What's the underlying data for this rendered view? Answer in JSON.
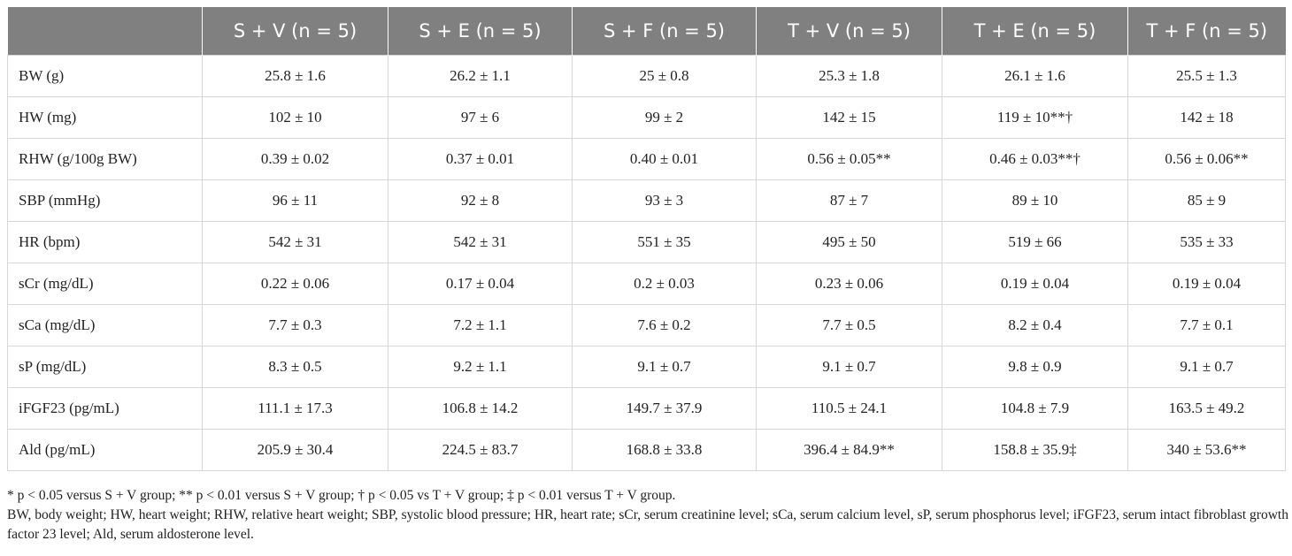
{
  "table": {
    "header": [
      "S + V (n = 5)",
      "S + E (n = 5)",
      "S + F (n = 5)",
      "T + V (n = 5)",
      "T + E (n = 5)",
      "T + F (n = 5)"
    ],
    "rows": [
      [
        "BW (g)",
        "25.8 ± 1.6",
        "26.2 ± 1.1",
        "25 ± 0.8",
        "25.3 ± 1.8",
        "26.1 ± 1.6",
        "25.5 ± 1.3"
      ],
      [
        "HW (mg)",
        "102 ± 10",
        "97 ± 6",
        "99 ± 2",
        "142 ± 15",
        "119 ± 10**†",
        "142 ± 18"
      ],
      [
        "RHW (g/100g BW)",
        "0.39 ± 0.02",
        "0.37 ± 0.01",
        "0.40 ± 0.01",
        "0.56 ± 0.05**",
        "0.46 ± 0.03**†",
        "0.56 ± 0.06**"
      ],
      [
        "SBP (mmHg)",
        "96 ± 11",
        "92 ± 8",
        "93 ± 3",
        "87 ± 7",
        "89 ± 10",
        "85 ± 9"
      ],
      [
        "HR (bpm)",
        "542 ± 31",
        "542 ± 31",
        "551 ± 35",
        "495 ± 50",
        "519 ± 66",
        "535 ± 33"
      ],
      [
        "sCr (mg/dL)",
        "0.22 ± 0.06",
        "0.17 ± 0.04",
        "0.2 ± 0.03",
        "0.23 ± 0.06",
        "0.19 ± 0.04",
        "0.19 ± 0.04"
      ],
      [
        "sCa (mg/dL)",
        "7.7 ± 0.3",
        "7.2 ± 1.1",
        "7.6 ± 0.2",
        "7.7 ± 0.5",
        "8.2 ± 0.4",
        "7.7 ± 0.1"
      ],
      [
        "sP (mg/dL)",
        "8.3 ± 0.5",
        "9.2 ± 1.1",
        "9.1 ± 0.7",
        "9.1 ± 0.7",
        "9.8 ± 0.9",
        "9.1 ± 0.7"
      ],
      [
        "iFGF23 (pg/mL)",
        "111.1 ± 17.3",
        "106.8 ± 14.2",
        "149.7 ± 37.9",
        "110.5 ± 24.1",
        "104.8 ± 7.9",
        "163.5 ± 49.2"
      ],
      [
        "Ald (pg/mL)",
        "205.9 ± 30.4",
        "224.5 ± 83.7",
        "168.8 ± 33.8",
        "396.4 ± 84.9**",
        "158.8 ± 35.9‡",
        "340 ± 53.6**"
      ]
    ]
  },
  "footnotes": [
    "* p < 0.05 versus S + V group; ** p < 0.01 versus S + V group; † p < 0.05 vs T + V group; ‡ p < 0.01 versus T + V group.",
    "BW, body weight; HW, heart weight; RHW, relative heart weight; SBP, systolic blood pressure; HR, heart rate; sCr, serum creatinine level; sCa, serum calcium level, sP, serum phosphorus level; iFGF23, serum intact fibroblast growth factor 23 level; Ald, serum aldosterone level."
  ]
}
